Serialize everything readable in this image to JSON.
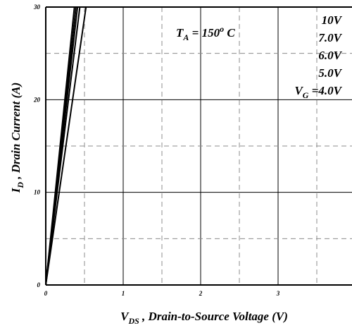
{
  "chart_data": {
    "type": "line",
    "title": "",
    "xlabel_main": "V",
    "xlabel_sub": "DS",
    "xlabel_rest": " , Drain-to-Source Voltage (V)",
    "ylabel_main": "I",
    "ylabel_sub": "D",
    "ylabel_rest": " , Drain Current (A)",
    "xlim": [
      0,
      3.9
    ],
    "ylim": [
      0,
      30
    ],
    "xticks": [
      "0",
      "1",
      "2",
      "3"
    ],
    "yticks": [
      "0",
      "10",
      "20",
      "30"
    ],
    "grid": true,
    "annotation": {
      "main": "T",
      "sub": "A",
      "rest": " = 150",
      "sup": "o",
      "unit": " C"
    },
    "legend_labels": [
      "10V",
      "7.0V",
      "6.0V",
      "5.0V"
    ],
    "legend_last": {
      "main": "V",
      "sub": "G",
      "rest": " =4.0V"
    },
    "series": [
      {
        "x": [
          0,
          0.37
        ],
        "y": [
          0,
          30
        ]
      },
      {
        "x": [
          0,
          0.39
        ],
        "y": [
          0,
          30
        ]
      },
      {
        "x": [
          0,
          0.41
        ],
        "y": [
          0,
          30
        ]
      },
      {
        "x": [
          0,
          0.44
        ],
        "y": [
          0,
          30
        ]
      },
      {
        "x": [
          0,
          0.52
        ],
        "y": [
          0,
          30
        ]
      }
    ]
  }
}
